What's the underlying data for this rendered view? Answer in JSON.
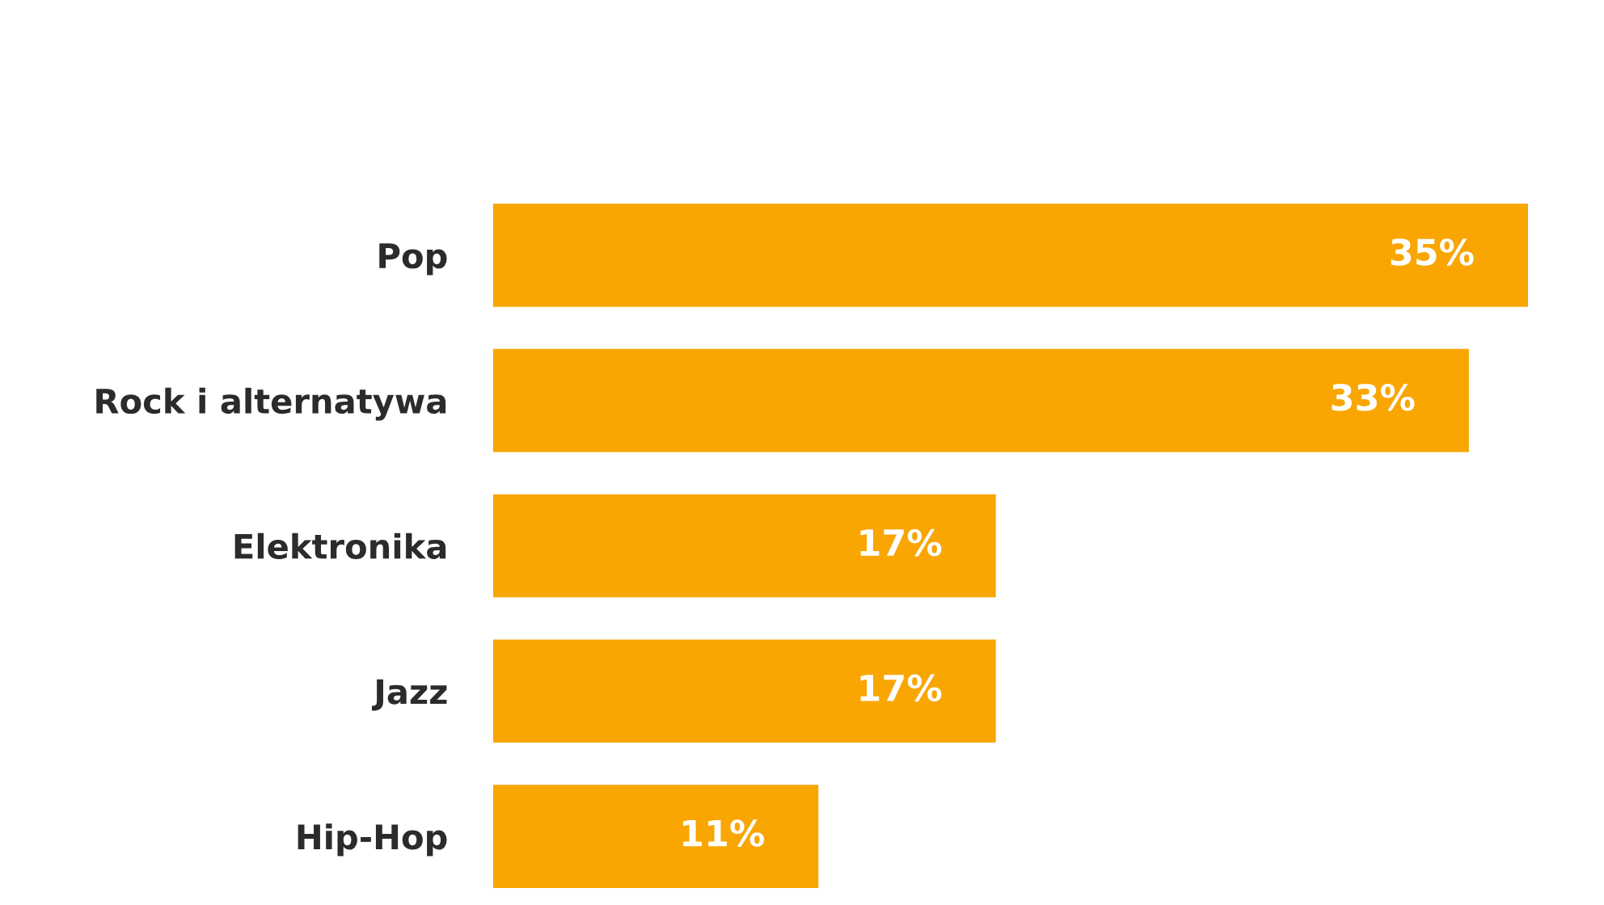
{
  "chart_data": {
    "type": "bar",
    "orientation": "horizontal",
    "categories": [
      "Pop",
      "Rock i alternatywa",
      "Elektronika",
      "Jazz",
      "Hip-Hop"
    ],
    "values": [
      35,
      33,
      17,
      17,
      11
    ],
    "value_labels": [
      "35%",
      "33%",
      "17%",
      "17%",
      "11%"
    ],
    "color": "#f9a602",
    "grid": false,
    "legend": false
  }
}
